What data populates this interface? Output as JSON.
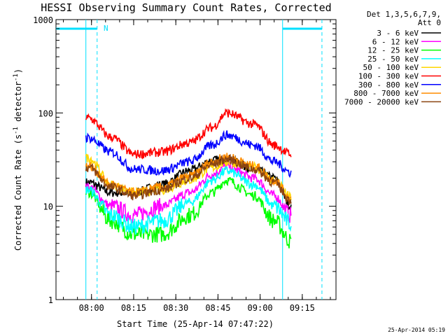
{
  "chart_data": {
    "type": "line",
    "title": "HESSI Observing Summary Count Rates, Corrected",
    "xlabel": "Start Time (25-Apr-14 07:47:22)",
    "ylabel": "Corrected Count Rate (s⁻¹ detector⁻¹)",
    "ylabel_main": "Corrected Count Rate (s",
    "ylabel_mid": " detector",
    "ylabel_end": ")",
    "ylabel_sup": "-1",
    "yscale": "log",
    "ylim": [
      1,
      1000
    ],
    "xlim": [
      "07:47:22",
      "09:27:00"
    ],
    "grid": false,
    "x_ticks": [
      "08:00",
      "08:15",
      "08:30",
      "08:45",
      "09:00",
      "09:15"
    ],
    "y_ticks": [
      "1",
      "10",
      "100",
      "1000"
    ],
    "legend_header": [
      "Det 1,3,5,6,7,9,",
      "Att 0"
    ],
    "legend_position": "top-right outside",
    "footer_stamp": "25-Apr-2014 05:19",
    "night_marker_label": "N",
    "data_window": [
      "07:58",
      "09:11"
    ],
    "markers": {
      "solid_lines": [
        "07:58",
        "09:08"
      ],
      "dashed_lines": [
        "08:02",
        "09:22"
      ],
      "bars": [
        [
          "07:47:22",
          "08:02"
        ],
        [
          "09:08",
          "09:22"
        ]
      ]
    },
    "series": [
      {
        "name": "3 - 6 keV",
        "color": "#000000",
        "values": [
          18,
          14,
          14,
          17,
          24,
          31,
          32,
          25,
          20,
          10
        ]
      },
      {
        "name": "6 - 12 keV",
        "color": "#ff00ff",
        "values": [
          16,
          10,
          8,
          10,
          14,
          22,
          27,
          20,
          13,
          8
        ]
      },
      {
        "name": "12 - 25 keV",
        "color": "#00ff00",
        "values": [
          14,
          7,
          5,
          5,
          8,
          14,
          19,
          13,
          7,
          4.2
        ]
      },
      {
        "name": "25 - 50 keV",
        "color": "#00ffff",
        "values": [
          15,
          8,
          6,
          7,
          11,
          19,
          24,
          17,
          10,
          6.5
        ]
      },
      {
        "name": "50 - 100 keV",
        "color": "#ffd700",
        "values": [
          33,
          17,
          14,
          15,
          19,
          26,
          30,
          26,
          19,
          12.5
        ]
      },
      {
        "name": "100 - 300 keV",
        "color": "#ff0000",
        "values": [
          88,
          55,
          36,
          38,
          48,
          70,
          100,
          75,
          45,
          36
        ]
      },
      {
        "name": "300 - 800 keV",
        "color": "#0000ff",
        "values": [
          54,
          38,
          25,
          24,
          30,
          45,
          58,
          45,
          30,
          23
        ]
      },
      {
        "name": "800 - 7000 keV",
        "color": "#ff8c00",
        "values": [
          27,
          17,
          14,
          16,
          21,
          30,
          34,
          27,
          19,
          12
        ]
      },
      {
        "name": "7000 - 20000 keV",
        "color": "#8b4513",
        "values": [
          26,
          16,
          13,
          15,
          20,
          28,
          32,
          25,
          18,
          11.5
        ]
      }
    ],
    "sample_times": [
      "07:59",
      "08:07",
      "08:15",
      "08:25",
      "08:35",
      "08:43",
      "08:48",
      "08:58",
      "09:05",
      "09:11"
    ]
  }
}
